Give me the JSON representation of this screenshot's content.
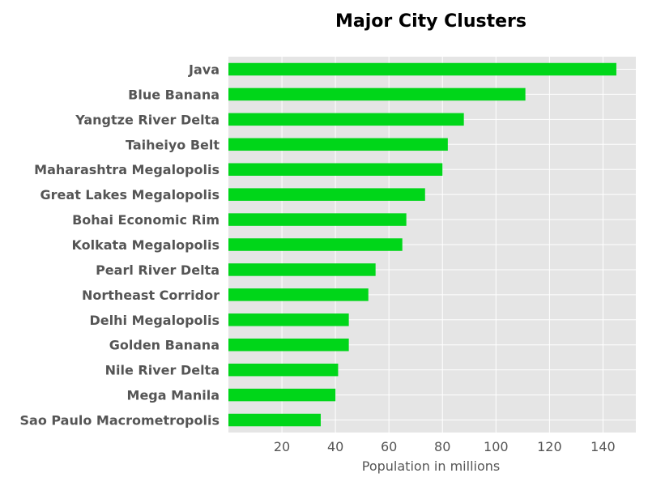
{
  "chart_data": {
    "type": "bar",
    "orientation": "horizontal",
    "title": "Major City Clusters",
    "xlabel": "Population in millions",
    "ylabel": "",
    "xlim": [
      0,
      152
    ],
    "xticks": [
      20,
      40,
      60,
      80,
      100,
      120,
      140
    ],
    "grid": true,
    "bar_color": "#00d619",
    "background_color": "#e5e5e5",
    "categories": [
      "Java",
      "Blue Banana",
      "Yangtze River Delta",
      "Taiheiyo Belt",
      "Maharashtra Megalopolis",
      "Great Lakes Megalopolis",
      "Bohai Economic Rim",
      "Kolkata Megalopolis",
      "Pearl River Delta",
      "Northeast Corridor",
      "Delhi Megalopolis",
      "Golden Banana",
      "Nile River Delta",
      "Mega Manila",
      "Sao Paulo Macrometropolis"
    ],
    "values": [
      145,
      111,
      88,
      82,
      80,
      73.5,
      66.5,
      65,
      55,
      52.3,
      45,
      45,
      41,
      40,
      34.5
    ]
  }
}
